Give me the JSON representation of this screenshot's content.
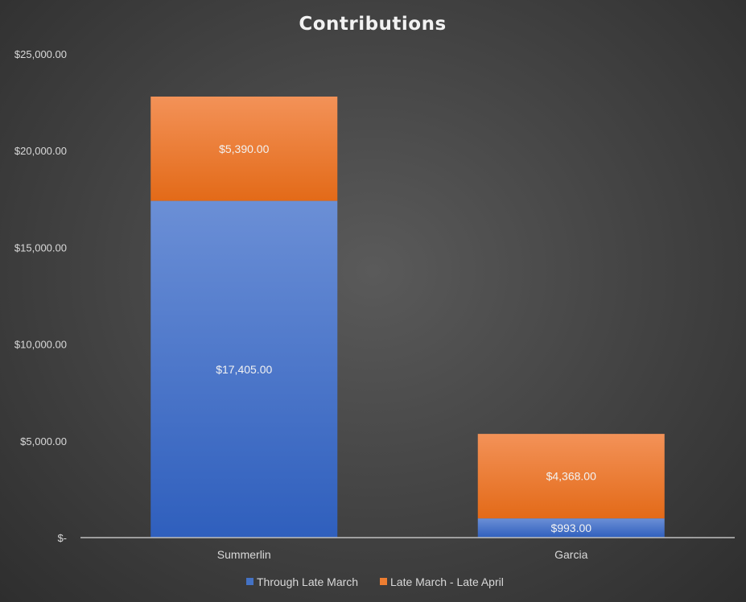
{
  "chart_data": {
    "type": "bar",
    "stacked": true,
    "title": "Contributions",
    "categories": [
      "Summerlin",
      "Garcia"
    ],
    "series": [
      {
        "name": "Through Late March",
        "values": [
          17405,
          993
        ],
        "labels": [
          "$17,405.00",
          "$993.00"
        ],
        "color": "#4472C4"
      },
      {
        "name": "Late March - Late April",
        "values": [
          5390,
          4368
        ],
        "labels": [
          "$5,390.00",
          "$4,368.00"
        ],
        "color": "#ED7D31"
      }
    ],
    "ylim": [
      0,
      25000
    ],
    "yticks": [
      0,
      5000,
      10000,
      15000,
      20000,
      25000
    ],
    "ytick_labels": [
      "$-",
      "$5,000.00",
      "$10,000.00",
      "$15,000.00",
      "$20,000.00",
      "$25,000.00"
    ],
    "xlabel": "",
    "ylabel": "",
    "grid": false,
    "legend_position": "bottom",
    "background_color": "#444444",
    "axis_color": "#bfbfbf"
  }
}
